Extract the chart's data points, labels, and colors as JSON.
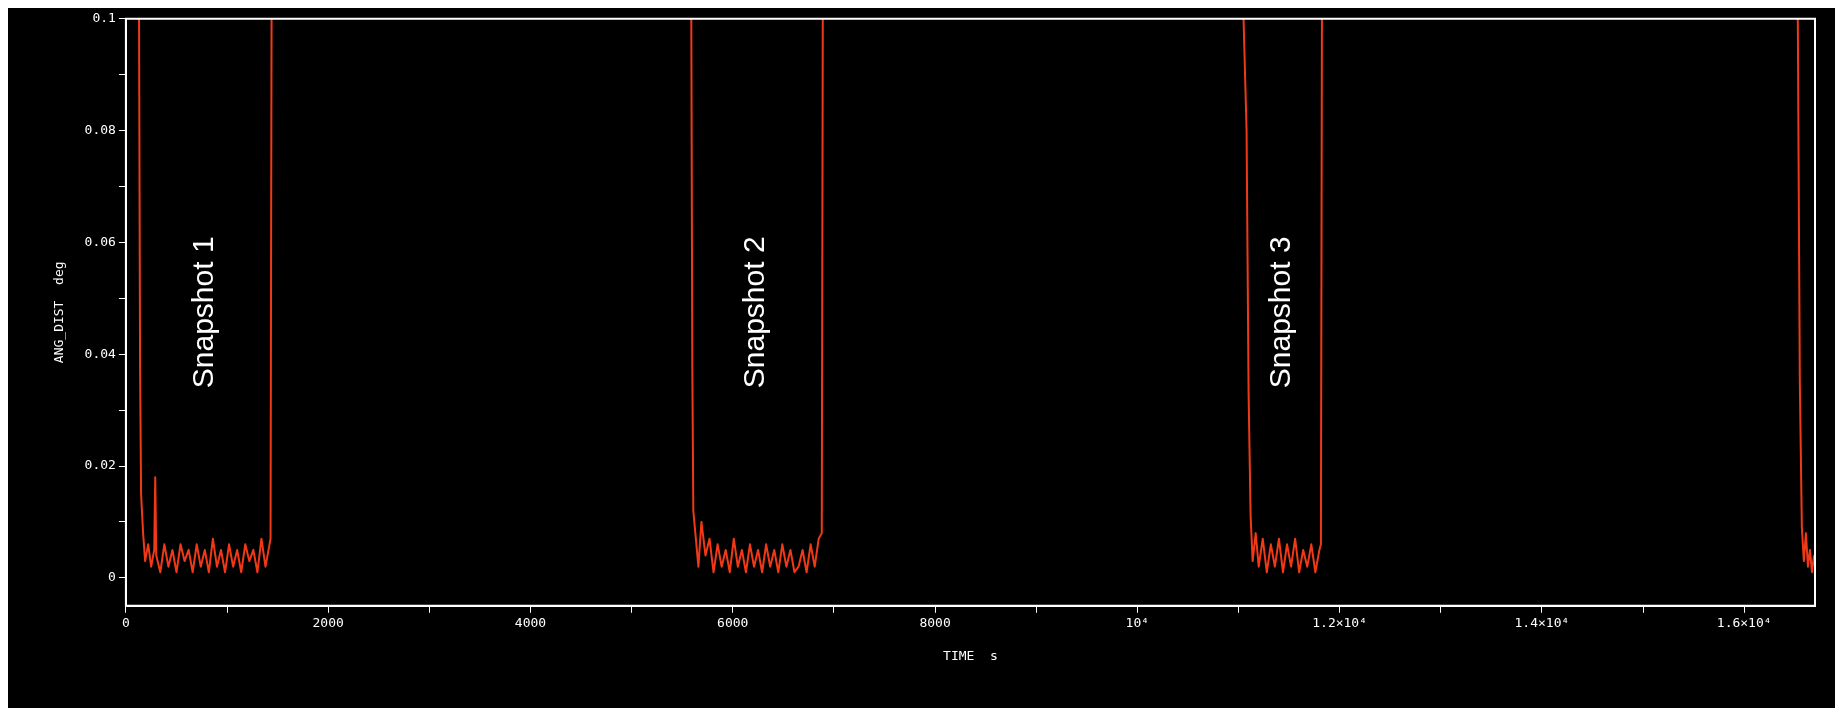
{
  "chart_data": {
    "type": "line",
    "xlabel": "TIME  s",
    "ylabel": "ANG_DIST  deg",
    "x": [
      110,
      130,
      140,
      150,
      170,
      190,
      220,
      250,
      280,
      290,
      300,
      340,
      380,
      420,
      460,
      500,
      540,
      580,
      620,
      660,
      700,
      740,
      780,
      820,
      860,
      900,
      940,
      980,
      1020,
      1060,
      1100,
      1140,
      1180,
      1220,
      1260,
      1300,
      1340,
      1380,
      1420,
      1430,
      1440,
      1460,
      5570,
      5590,
      5600,
      5610,
      5630,
      5660,
      5690,
      5730,
      5770,
      5810,
      5850,
      5890,
      5930,
      5970,
      6010,
      6050,
      6090,
      6130,
      6170,
      6210,
      6250,
      6290,
      6330,
      6370,
      6410,
      6450,
      6490,
      6530,
      6570,
      6610,
      6650,
      6690,
      6730,
      6770,
      6810,
      6850,
      6880,
      6890,
      6900,
      11030,
      11050,
      11080,
      11100,
      11120,
      11140,
      11170,
      11200,
      11240,
      11280,
      11320,
      11360,
      11400,
      11440,
      11480,
      11520,
      11560,
      11600,
      11640,
      11680,
      11720,
      11760,
      11800,
      11815,
      11825,
      11840,
      16510,
      16530,
      16550,
      16570,
      16590,
      16610,
      16630,
      16650,
      16670,
      16690
    ],
    "series": [
      {
        "color": "#f03a17",
        "values": [
          0.1,
          0.1,
          0.038,
          0.015,
          0.008,
          0.003,
          0.006,
          0.002,
          0.005,
          0.018,
          0.004,
          0.001,
          0.006,
          0.002,
          0.005,
          0.001,
          0.006,
          0.003,
          0.005,
          0.001,
          0.006,
          0.002,
          0.005,
          0.001,
          0.007,
          0.002,
          0.005,
          0.001,
          0.006,
          0.002,
          0.005,
          0.001,
          0.006,
          0.003,
          0.005,
          0.001,
          0.007,
          0.002,
          0.006,
          0.007,
          0.1,
          null,
          0.1,
          0.1,
          0.038,
          0.012,
          0.008,
          0.002,
          0.01,
          0.004,
          0.007,
          0.001,
          0.006,
          0.002,
          0.005,
          0.001,
          0.007,
          0.002,
          0.005,
          0.001,
          0.006,
          0.002,
          0.005,
          0.001,
          0.006,
          0.002,
          0.005,
          0.001,
          0.006,
          0.002,
          0.005,
          0.001,
          0.002,
          0.005,
          0.001,
          0.006,
          0.002,
          0.007,
          0.008,
          0.1,
          null,
          0.1,
          0.1,
          0.08,
          0.033,
          0.011,
          0.003,
          0.008,
          0.002,
          0.007,
          0.001,
          0.006,
          0.002,
          0.007,
          0.001,
          0.006,
          0.002,
          0.007,
          0.001,
          0.005,
          0.002,
          0.006,
          0.001,
          0.005,
          0.006,
          0.1,
          null,
          0.1,
          0.1,
          0.035,
          0.009,
          0.003,
          0.008,
          0.002,
          0.005,
          0.001,
          0.004
        ]
      }
    ],
    "xlim": [
      0,
      16700
    ],
    "xticks": [
      0,
      {
        "value": 1000,
        "label": null
      },
      2000,
      {
        "value": 3000,
        "label": null
      },
      4000,
      {
        "value": 5000,
        "label": null
      },
      6000,
      {
        "value": 7000,
        "label": null
      },
      8000,
      {
        "value": 9000,
        "label": null
      },
      {
        "value": 10000,
        "label": "10⁴"
      },
      {
        "value": 11000,
        "label": null
      },
      {
        "value": 12000,
        "label": "1.2×10⁴"
      },
      {
        "value": 13000,
        "label": null
      },
      {
        "value": 14000,
        "label": "1.4×10⁴"
      },
      {
        "value": 15000,
        "label": null
      },
      {
        "value": 16000,
        "label": "1.6×10⁴"
      }
    ],
    "ylim": [
      -0.005,
      0.1
    ],
    "yticks": [
      0,
      {
        "value": 0.01,
        "label": null
      },
      0.02,
      {
        "value": 0.03,
        "label": null
      },
      0.04,
      {
        "value": 0.05,
        "label": null
      },
      0.06,
      {
        "value": 0.07,
        "label": null
      },
      0.08,
      {
        "value": 0.09,
        "label": null
      },
      0.1
    ],
    "annotations": [
      "Snapshot 1",
      "Snapshot 2",
      "Snapshot 3"
    ],
    "legend": false,
    "grid": false,
    "line_style": "solid"
  }
}
